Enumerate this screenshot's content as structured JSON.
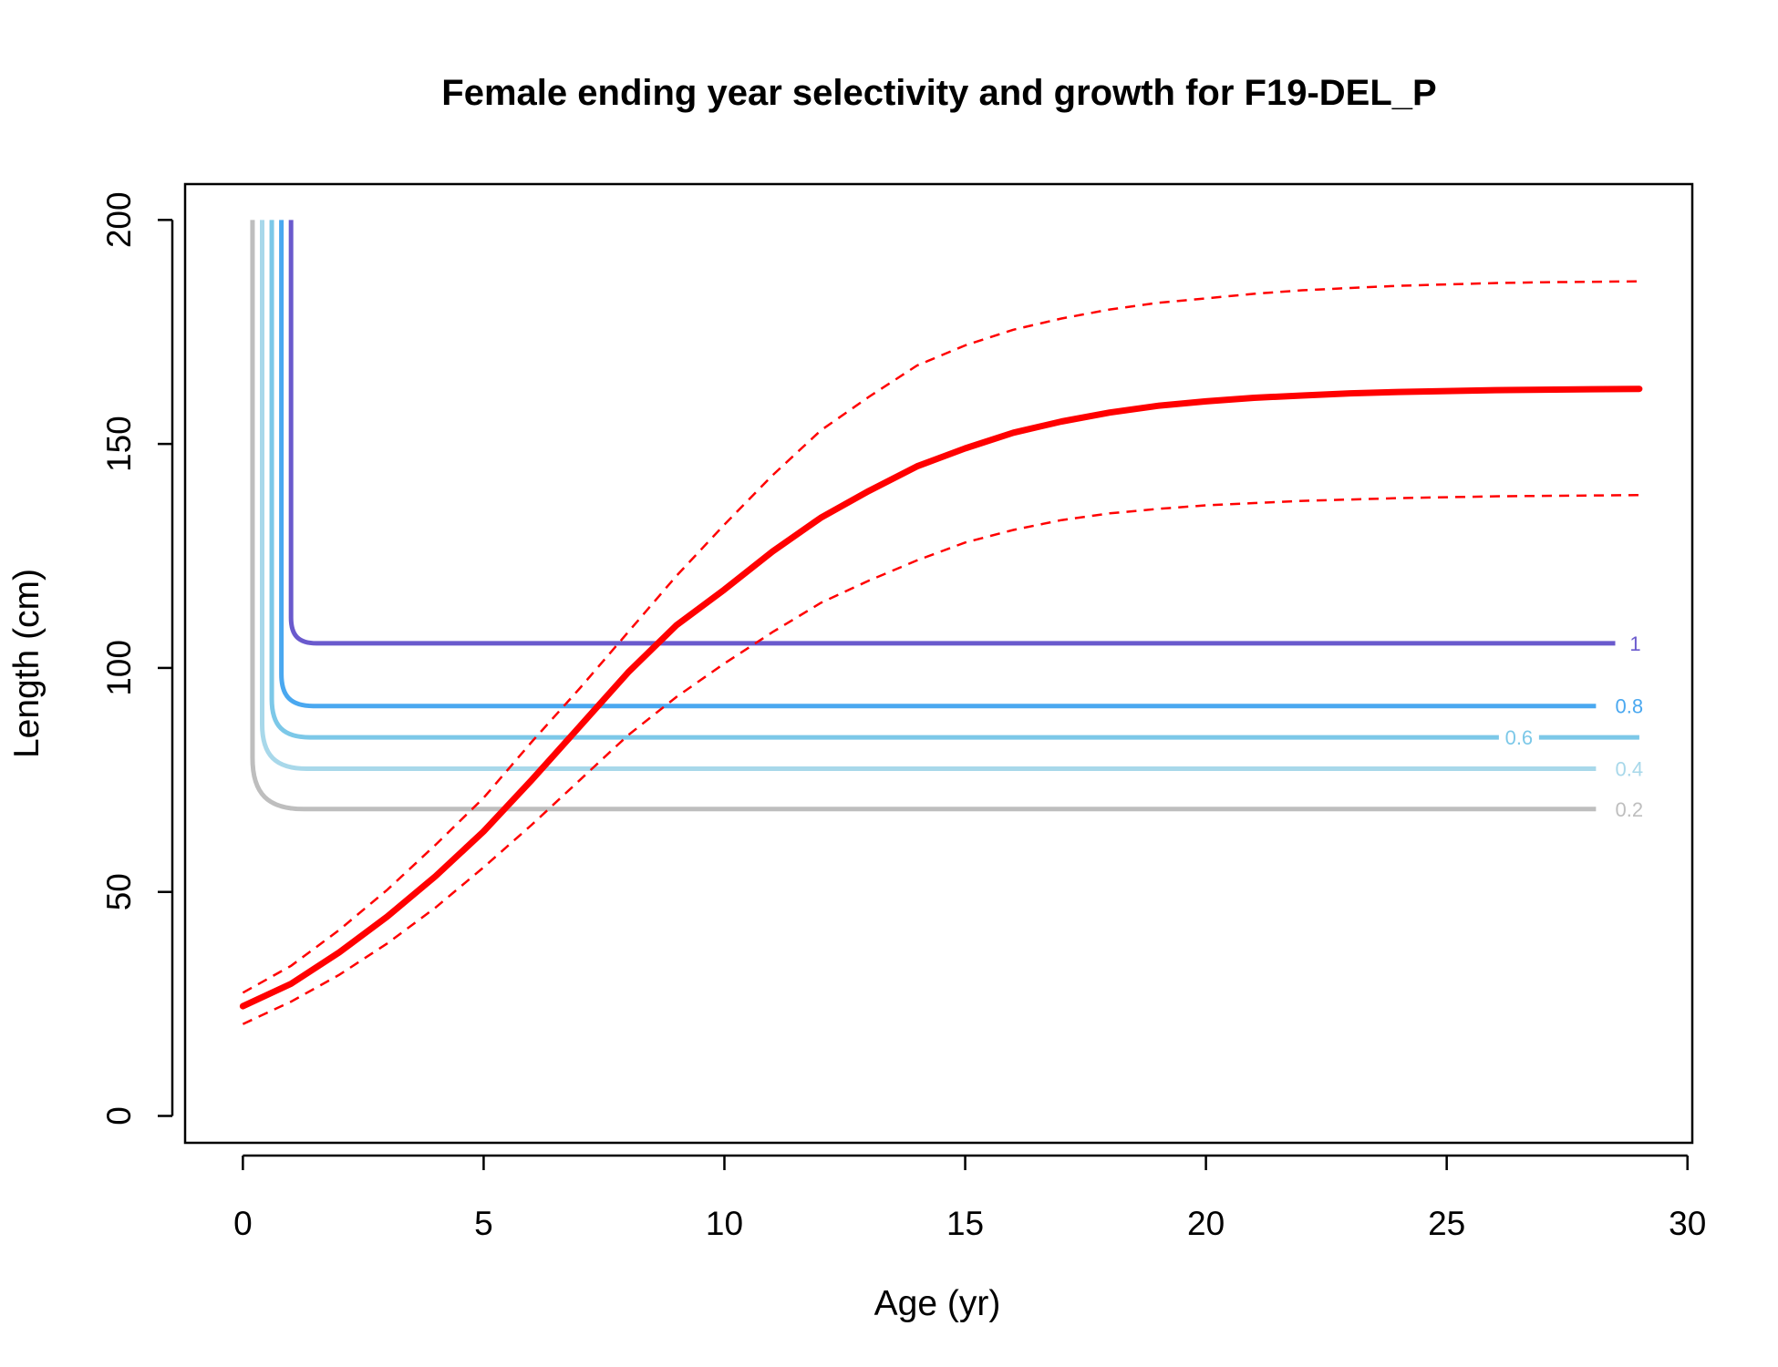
{
  "chart_data": {
    "type": "line",
    "title": "Female ending year selectivity and growth for F19-DEL_P",
    "xlabel": "Age (yr)",
    "ylabel": "Length (cm)",
    "xlim": [
      -1.2,
      30.1
    ],
    "ylim": [
      -6,
      208
    ],
    "x_ticks": [
      0,
      5,
      10,
      15,
      20,
      25,
      30
    ],
    "y_ticks": [
      0,
      50,
      100,
      150,
      200
    ],
    "grid": false,
    "legend": "none",
    "colors": {
      "growth": "#ff0000",
      "contour_1": "#6a5acd",
      "contour_0_8": "#4aa8f0",
      "contour_0_6": "#7cc8e8",
      "contour_0_4": "#a8d8ea",
      "contour_0_2": "#bebebe"
    },
    "growth_curve": {
      "x": [
        0,
        1,
        2,
        3,
        4,
        5,
        6,
        7,
        8,
        9,
        10,
        11,
        12,
        13,
        14,
        15,
        16,
        17,
        18,
        19,
        20,
        21,
        22,
        23,
        24,
        25,
        26,
        27,
        28,
        29
      ],
      "mean": [
        24.5,
        29.5,
        36.5,
        44.5,
        53.5,
        63.5,
        75,
        87,
        99,
        109.5,
        117.5,
        126,
        133.5,
        139.5,
        145,
        149,
        152.5,
        155,
        157,
        158.5,
        159.5,
        160.3,
        160.8,
        161.3,
        161.6,
        161.8,
        162,
        162.1,
        162.2,
        162.3
      ],
      "upper": [
        27.5,
        33.5,
        41.5,
        50.5,
        60.5,
        71,
        83.5,
        95.5,
        108,
        120.5,
        132,
        143,
        153,
        160.5,
        167.5,
        172,
        175.5,
        178,
        180,
        181.5,
        182.5,
        183.5,
        184.3,
        184.8,
        185.3,
        185.6,
        185.9,
        186.1,
        186.2,
        186.3
      ],
      "lower": [
        20.5,
        25.5,
        31.5,
        38.5,
        46.5,
        55.5,
        65,
        75,
        85,
        93.5,
        101,
        108,
        114.5,
        119.5,
        124,
        128,
        130.8,
        133,
        134.5,
        135.5,
        136.3,
        136.8,
        137.3,
        137.6,
        137.9,
        138.1,
        138.3,
        138.4,
        138.5,
        138.6
      ]
    },
    "contours": [
      {
        "label": "1",
        "level": 1,
        "length": 105.5,
        "x_start": 1.0,
        "y_top": 200,
        "x_end": 28.5,
        "label_x": 28.8
      },
      {
        "label": "0.8",
        "level": 0.8,
        "length": 91.5,
        "x_start": 0.8,
        "y_top": 200,
        "x_end": 28.1,
        "label_x": 28.5
      },
      {
        "label": "0.6",
        "level": 0.6,
        "length": 84.5,
        "x_start": 0.6,
        "y_top": 200,
        "x_end": 29.0,
        "label_x": 26.5
      },
      {
        "label": "0.4",
        "level": 0.4,
        "length": 77.5,
        "x_start": 0.4,
        "y_top": 200,
        "x_end": 28.1,
        "label_x": 28.5
      },
      {
        "label": "0.2",
        "level": 0.2,
        "length": 68.5,
        "x_start": 0.2,
        "y_top": 200,
        "x_end": 28.1,
        "label_x": 28.5
      }
    ]
  }
}
